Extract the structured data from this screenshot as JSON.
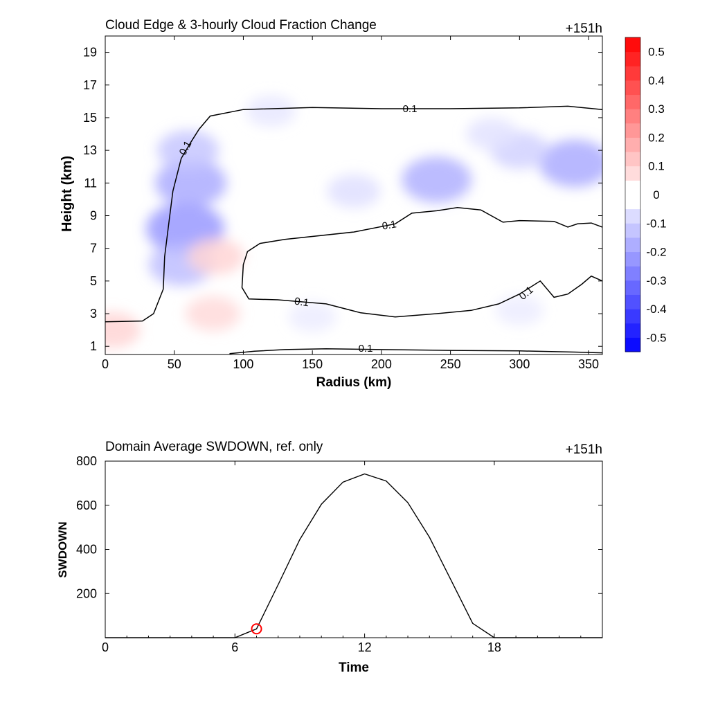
{
  "chart_data": [
    {
      "type": "heatmap",
      "title": "Cloud Edge & 3-hourly Cloud Fraction Change",
      "time_label": "+151h",
      "xlabel": "Radius (km)",
      "ylabel": "Height (km)",
      "xlim": [
        0,
        360
      ],
      "ylim": [
        0.5,
        20
      ],
      "xticks": [
        "0",
        "50",
        "100",
        "150",
        "200",
        "250",
        "300",
        "350"
      ],
      "yticks": [
        "1",
        "3",
        "5",
        "7",
        "9",
        "11",
        "13",
        "15",
        "17",
        "19"
      ],
      "colorbar": {
        "min": -0.55,
        "max": 0.55,
        "step": 0.05,
        "ticks": [
          "-0.5",
          "-0.4",
          "-0.3",
          "-0.2",
          "-0.1",
          "0",
          "0.1",
          "0.2",
          "0.3",
          "0.4",
          "0.5"
        ],
        "low_color": "#0000ff",
        "mid_color": "#ffffff",
        "high_color": "#ff0000"
      },
      "contour_level": "0.1",
      "contour_labels": [
        "0.1",
        "0.1",
        "0.1",
        "0.1",
        "0.1",
        "0.1"
      ],
      "cloud_fraction_change": [
        {
          "r": 58,
          "z": 8.2,
          "value": -0.22
        },
        {
          "r": 62,
          "z": 11.0,
          "value": -0.18
        },
        {
          "r": 55,
          "z": 6.0,
          "value": -0.14
        },
        {
          "r": 60,
          "z": 13.0,
          "value": -0.12
        },
        {
          "r": 240,
          "z": 11.2,
          "value": -0.17
        },
        {
          "r": 340,
          "z": 12.2,
          "value": -0.18
        },
        {
          "r": 300,
          "z": 13.0,
          "value": -0.1
        },
        {
          "r": 180,
          "z": 10.5,
          "value": -0.07
        },
        {
          "r": 280,
          "z": 14.0,
          "value": -0.06
        },
        {
          "r": 120,
          "z": 15.4,
          "value": -0.05
        },
        {
          "r": 80,
          "z": 6.5,
          "value": 0.09
        },
        {
          "r": 78,
          "z": 3.0,
          "value": 0.08
        },
        {
          "r": 5,
          "z": 2.0,
          "value": 0.09
        },
        {
          "r": 150,
          "z": 2.8,
          "value": -0.04
        },
        {
          "r": 300,
          "z": 3.2,
          "value": -0.04
        }
      ],
      "contours": [
        {
          "label": "0.1",
          "points": [
            [
              0,
              2.5
            ],
            [
              27,
              2.55
            ],
            [
              35,
              3.0
            ],
            [
              42,
              4.5
            ],
            [
              43,
              6.5
            ],
            [
              46,
              8.5
            ],
            [
              49,
              10.5
            ],
            [
              55,
              12.5
            ],
            [
              62,
              13.5
            ],
            [
              68,
              14.3
            ],
            [
              76,
              15.1
            ],
            [
              100,
              15.5
            ],
            [
              150,
              15.62
            ],
            [
              200,
              15.55
            ],
            [
              250,
              15.55
            ],
            [
              300,
              15.6
            ],
            [
              335,
              15.7
            ],
            [
              360,
              15.5
            ]
          ]
        },
        {
          "label": "0.1",
          "points": [
            [
              360,
              8.3
            ],
            [
              352,
              8.55
            ],
            [
              342,
              8.5
            ],
            [
              335,
              8.3
            ],
            [
              325,
              8.65
            ],
            [
              300,
              8.7
            ],
            [
              288,
              8.6
            ],
            [
              272,
              9.35
            ],
            [
              255,
              9.5
            ],
            [
              240,
              9.3
            ],
            [
              222,
              9.15
            ],
            [
              210,
              8.5
            ],
            [
              180,
              8.0
            ],
            [
              130,
              7.55
            ],
            [
              112,
              7.3
            ],
            [
              103,
              6.8
            ],
            [
              100,
              6.0
            ],
            [
              99,
              4.6
            ],
            [
              104,
              3.9
            ],
            [
              125,
              3.85
            ],
            [
              160,
              3.6
            ],
            [
              185,
              3.05
            ],
            [
              210,
              2.8
            ],
            [
              240,
              3.0
            ],
            [
              265,
              3.2
            ],
            [
              285,
              3.6
            ],
            [
              300,
              4.2
            ],
            [
              315,
              5.0
            ],
            [
              325,
              4.0
            ],
            [
              335,
              4.2
            ],
            [
              345,
              4.8
            ],
            [
              352,
              5.3
            ],
            [
              360,
              5.0
            ]
          ]
        },
        {
          "label": "0.1",
          "points": [
            [
              90,
              0.55
            ],
            [
              108,
              0.7
            ],
            [
              130,
              0.8
            ],
            [
              160,
              0.85
            ],
            [
              200,
              0.8
            ],
            [
              250,
              0.75
            ],
            [
              300,
              0.72
            ],
            [
              340,
              0.65
            ],
            [
              360,
              0.6
            ]
          ]
        }
      ]
    },
    {
      "type": "line",
      "title": "Domain Average SWDOWN, ref. only",
      "time_label": "+151h",
      "xlabel": "Time",
      "ylabel": "SWDOWN",
      "xlim": [
        0,
        23
      ],
      "ylim": [
        0,
        800
      ],
      "xticks": [
        "0",
        "6",
        "12",
        "18"
      ],
      "yticks": [
        "200",
        "400",
        "600",
        "800"
      ],
      "series": [
        {
          "x": [
            0,
            1,
            2,
            3,
            4,
            5,
            6,
            7,
            8,
            9,
            10,
            11,
            12,
            13,
            14,
            15,
            16,
            17,
            18,
            19,
            20,
            21,
            22,
            23
          ],
          "values": [
            0,
            0,
            0,
            0,
            0,
            0,
            0,
            40,
            240,
            445,
            605,
            705,
            742,
            710,
            612,
            455,
            260,
            65,
            0,
            0,
            0,
            0,
            0,
            0
          ],
          "color": "#000000"
        }
      ],
      "marker": {
        "x": 7,
        "y": 40,
        "color": "#ff0000"
      }
    }
  ]
}
